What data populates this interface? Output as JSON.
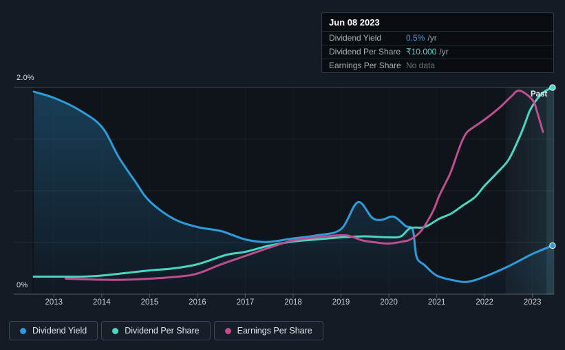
{
  "tooltip": {
    "date": "Jun 08 2023",
    "rows": [
      {
        "label": "Dividend Yield",
        "value": "0.5%",
        "suffix": "/yr",
        "value_color": "#3b9fe0"
      },
      {
        "label": "Dividend Per Share",
        "value": "₹10.000",
        "suffix": "/yr",
        "value_color": "#47d8c4"
      },
      {
        "label": "Earnings Per Share",
        "value": "No data",
        "suffix": "",
        "value_color": "#6c737c"
      }
    ]
  },
  "chart": {
    "past_label": "Past",
    "y_top_label": "2.0%",
    "y_bottom_label": "0%",
    "x_axis": {
      "years": [
        2013,
        2014,
        2015,
        2016,
        2017,
        2018,
        2019,
        2020,
        2021,
        2022,
        2023
      ]
    }
  },
  "legend": [
    {
      "label": "Dividend Yield",
      "color": "#2d9cdb"
    },
    {
      "label": "Dividend Per Share",
      "color": "#47d8c4"
    },
    {
      "label": "Earnings Per Share",
      "color": "#c04e8f"
    }
  ],
  "chart_data": {
    "type": "line",
    "title": "Dividend history (yield, dividend per share, earnings per share)",
    "x_range": [
      2012.55,
      2023.45
    ],
    "y_axis": {
      "min": 0,
      "max": 2.0,
      "gridlines": [
        0,
        0.5,
        1.0,
        1.5,
        2.0
      ],
      "tick_labels_shown": [
        "2.0%",
        "0%"
      ],
      "units": "percent (dividend yield axis; per-share series drawn on hidden scales)"
    },
    "past_region_start": 2022.44,
    "legend_position": "bottom-left",
    "grid": true,
    "series": [
      {
        "name": "Dividend Yield",
        "color": "#2d9cdb",
        "fill": true,
        "end_dot": true,
        "end_value_label": "0.5% /yr",
        "points": [
          [
            2012.58,
            1.96
          ],
          [
            2013.0,
            1.9
          ],
          [
            2013.5,
            1.79
          ],
          [
            2014.0,
            1.62
          ],
          [
            2014.35,
            1.33
          ],
          [
            2014.7,
            1.09
          ],
          [
            2015.0,
            0.9
          ],
          [
            2015.5,
            0.73
          ],
          [
            2016.0,
            0.65
          ],
          [
            2016.5,
            0.61
          ],
          [
            2017.0,
            0.53
          ],
          [
            2017.45,
            0.505
          ],
          [
            2018.0,
            0.54
          ],
          [
            2018.5,
            0.57
          ],
          [
            2019.0,
            0.63
          ],
          [
            2019.35,
            0.89
          ],
          [
            2019.65,
            0.74
          ],
          [
            2019.85,
            0.72
          ],
          [
            2020.1,
            0.75
          ],
          [
            2020.35,
            0.66
          ],
          [
            2020.5,
            0.62
          ],
          [
            2020.58,
            0.36
          ],
          [
            2020.75,
            0.28
          ],
          [
            2021.0,
            0.18
          ],
          [
            2021.35,
            0.135
          ],
          [
            2021.65,
            0.12
          ],
          [
            2022.0,
            0.17
          ],
          [
            2022.5,
            0.27
          ],
          [
            2023.0,
            0.39
          ],
          [
            2023.42,
            0.47
          ]
        ]
      },
      {
        "name": "Dividend Per Share",
        "color": "#47d8c4",
        "fill": false,
        "end_dot": true,
        "end_value_label": "₹10.000 /yr",
        "points": [
          [
            2012.58,
            0.17
          ],
          [
            2013.0,
            0.17
          ],
          [
            2013.6,
            0.17
          ],
          [
            2014.0,
            0.18
          ],
          [
            2014.5,
            0.205
          ],
          [
            2015.0,
            0.23
          ],
          [
            2015.5,
            0.25
          ],
          [
            2016.0,
            0.29
          ],
          [
            2016.6,
            0.38
          ],
          [
            2017.0,
            0.41
          ],
          [
            2017.5,
            0.47
          ],
          [
            2018.0,
            0.51
          ],
          [
            2018.5,
            0.53
          ],
          [
            2019.0,
            0.55
          ],
          [
            2019.5,
            0.56
          ],
          [
            2020.0,
            0.55
          ],
          [
            2020.25,
            0.56
          ],
          [
            2020.45,
            0.64
          ],
          [
            2020.75,
            0.65
          ],
          [
            2021.05,
            0.73
          ],
          [
            2021.3,
            0.78
          ],
          [
            2021.55,
            0.86
          ],
          [
            2021.8,
            0.94
          ],
          [
            2022.0,
            1.05
          ],
          [
            2022.25,
            1.17
          ],
          [
            2022.5,
            1.3
          ],
          [
            2022.72,
            1.51
          ],
          [
            2022.85,
            1.66
          ],
          [
            2022.95,
            1.78
          ],
          [
            2023.1,
            1.89
          ],
          [
            2023.25,
            1.96
          ],
          [
            2023.42,
            2.0
          ]
        ]
      },
      {
        "name": "Earnings Per Share",
        "color": "#c04e8f",
        "fill": false,
        "end_dot": false,
        "end_value_label": "No data",
        "points": [
          [
            2013.25,
            0.15
          ],
          [
            2014.0,
            0.14
          ],
          [
            2014.5,
            0.14
          ],
          [
            2015.0,
            0.15
          ],
          [
            2015.6,
            0.17
          ],
          [
            2016.0,
            0.2
          ],
          [
            2016.5,
            0.29
          ],
          [
            2017.0,
            0.37
          ],
          [
            2017.5,
            0.45
          ],
          [
            2018.0,
            0.52
          ],
          [
            2018.6,
            0.555
          ],
          [
            2019.1,
            0.57
          ],
          [
            2019.45,
            0.52
          ],
          [
            2019.75,
            0.5
          ],
          [
            2020.0,
            0.49
          ],
          [
            2020.3,
            0.51
          ],
          [
            2020.45,
            0.53
          ],
          [
            2020.65,
            0.6
          ],
          [
            2020.8,
            0.7
          ],
          [
            2020.95,
            0.83
          ],
          [
            2021.05,
            0.95
          ],
          [
            2021.2,
            1.09
          ],
          [
            2021.3,
            1.19
          ],
          [
            2021.5,
            1.45
          ],
          [
            2021.62,
            1.56
          ],
          [
            2021.75,
            1.61
          ],
          [
            2022.0,
            1.69
          ],
          [
            2022.3,
            1.8
          ],
          [
            2022.55,
            1.91
          ],
          [
            2022.73,
            1.97
          ],
          [
            2023.0,
            1.88
          ],
          [
            2023.1,
            1.76
          ],
          [
            2023.22,
            1.57
          ]
        ]
      }
    ]
  }
}
